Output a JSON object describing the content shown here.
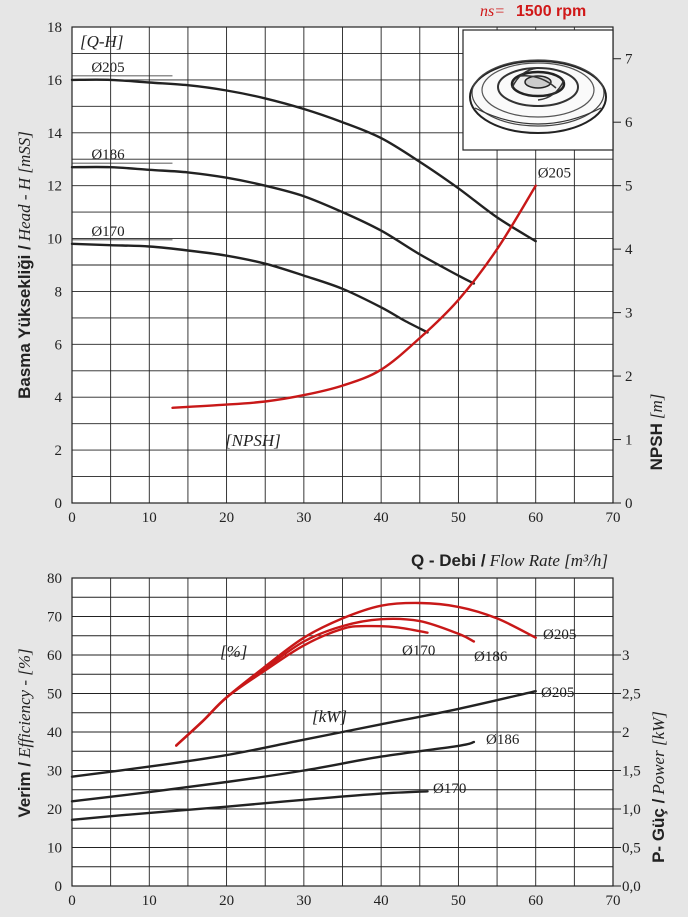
{
  "header": {
    "ns_label": "ns=",
    "speed": "1500 rpm",
    "accent_color": "#d01818"
  },
  "chart_data": [
    {
      "type": "line",
      "id": "head_npsh",
      "xlim": [
        0,
        70
      ],
      "xticks": [
        0,
        10,
        20,
        30,
        40,
        50,
        60,
        70
      ],
      "ylim": [
        0,
        18
      ],
      "yticks": [
        0,
        2,
        4,
        6,
        8,
        10,
        12,
        14,
        16,
        18
      ],
      "y2lim": [
        0,
        7.5
      ],
      "y2ticks": [
        0,
        1,
        2,
        3,
        4,
        5,
        6,
        7
      ],
      "xlabel_bold": "Q - Debi /",
      "xlabel_italic": "Flow Rate [m³/h]",
      "ylabel_bold": "Basma Yüksekliği /",
      "ylabel_italic": "Head - H [mSS]",
      "y2label_bold": "NPSH",
      "y2label_italic": "[m]",
      "qh_label": "[Q-H]",
      "npsh_label": "[NPSH]",
      "series": [
        {
          "name": "Ø205",
          "axis": "left",
          "color": "#222222",
          "x": [
            0,
            5,
            10,
            15,
            20,
            25,
            30,
            35,
            40,
            45,
            50,
            55,
            60
          ],
          "y": [
            16.0,
            16.0,
            15.9,
            15.8,
            15.6,
            15.3,
            14.9,
            14.4,
            13.8,
            12.9,
            11.9,
            10.8,
            9.9
          ]
        },
        {
          "name": "Ø186",
          "axis": "left",
          "color": "#222222",
          "x": [
            0,
            5,
            10,
            15,
            20,
            25,
            30,
            35,
            40,
            45,
            50,
            52
          ],
          "y": [
            12.7,
            12.7,
            12.6,
            12.5,
            12.3,
            12.0,
            11.6,
            11.0,
            10.3,
            9.4,
            8.6,
            8.3
          ]
        },
        {
          "name": "Ø170",
          "axis": "left",
          "color": "#222222",
          "x": [
            0,
            5,
            10,
            15,
            20,
            25,
            30,
            35,
            40,
            43,
            46
          ],
          "y": [
            9.8,
            9.75,
            9.7,
            9.55,
            9.35,
            9.05,
            8.6,
            8.1,
            7.4,
            6.9,
            6.45
          ]
        },
        {
          "name": "Ø205",
          "axis": "right",
          "color": "#c81818",
          "x": [
            13,
            20,
            25,
            30,
            35,
            40,
            45,
            50,
            55,
            60
          ],
          "y": [
            1.5,
            1.55,
            1.6,
            1.7,
            1.85,
            2.1,
            2.6,
            3.2,
            4.0,
            5.0
          ]
        }
      ]
    },
    {
      "type": "line",
      "id": "efficiency_power",
      "xlim": [
        0,
        70
      ],
      "xticks": [
        0,
        10,
        20,
        30,
        40,
        50,
        60,
        70
      ],
      "ylim": [
        0,
        80
      ],
      "yticks": [
        0,
        10,
        20,
        30,
        40,
        50,
        60,
        70,
        80
      ],
      "y2lim": [
        0,
        4
      ],
      "y2ticks": [
        0,
        0.5,
        1.0,
        1.5,
        2.0,
        2.5,
        3.0
      ],
      "y2ticklabels": [
        "0,0",
        "0,5",
        "1,0",
        "1,5",
        "2",
        "2,5",
        "3"
      ],
      "ylabel_bold": "Verim /",
      "ylabel_italic": "Efficiency - [%]",
      "y2label_bold": "P- Güç /",
      "y2label_italic": "Power [kW]",
      "eff_label": "[%]",
      "kw_label": "[kW]",
      "series": [
        {
          "name": "Ø205",
          "kind": "efficiency",
          "color": "#c81818",
          "x": [
            13.5,
            17,
            20,
            25,
            30,
            35,
            40,
            45,
            50,
            55,
            60
          ],
          "y": [
            36.5,
            43,
            49,
            57,
            64.5,
            69.5,
            72.8,
            73.5,
            72.5,
            69.5,
            64.5
          ]
        },
        {
          "name": "Ø186",
          "kind": "efficiency",
          "color": "#c81818",
          "x": [
            13.5,
            17,
            20,
            25,
            30,
            35,
            40,
            45,
            50,
            52
          ],
          "y": [
            36.5,
            43,
            49,
            56.5,
            63.5,
            67.5,
            69.3,
            68.8,
            65.5,
            63.5
          ]
        },
        {
          "name": "Ø170",
          "kind": "efficiency",
          "color": "#c81818",
          "x": [
            13.5,
            17,
            20,
            25,
            30,
            35,
            38,
            42,
            46
          ],
          "y": [
            36.5,
            43,
            49,
            56,
            62.5,
            66.8,
            67.5,
            67.2,
            65.8
          ]
        },
        {
          "name": "Ø205",
          "kind": "power",
          "color": "#222222",
          "x": [
            0,
            10,
            20,
            30,
            40,
            50,
            60
          ],
          "y": [
            1.42,
            1.55,
            1.7,
            1.9,
            2.1,
            2.3,
            2.53
          ]
        },
        {
          "name": "Ø186",
          "kind": "power",
          "color": "#222222",
          "x": [
            0,
            10,
            20,
            30,
            40,
            50,
            52
          ],
          "y": [
            1.1,
            1.22,
            1.35,
            1.5,
            1.68,
            1.82,
            1.87
          ]
        },
        {
          "name": "Ø170",
          "kind": "power",
          "color": "#222222",
          "x": [
            0,
            10,
            20,
            30,
            40,
            46
          ],
          "y": [
            0.86,
            0.95,
            1.03,
            1.12,
            1.2,
            1.23
          ]
        }
      ]
    }
  ]
}
